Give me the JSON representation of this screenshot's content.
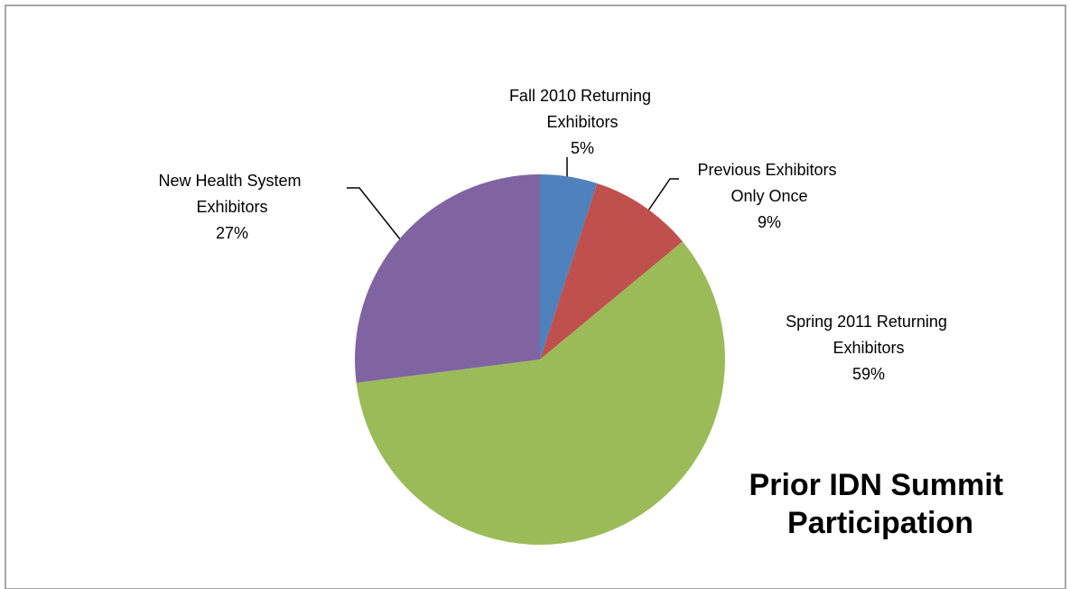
{
  "chart_data": {
    "type": "pie",
    "title": "Prior IDN Summit Participation",
    "categories": [
      "Fall 2010 Returning Exhibitors",
      "Previous Exhibitors Only Once",
      "Spring 2011 Returning Exhibitors",
      "New Health System Exhibitors"
    ],
    "values": [
      5,
      9,
      59,
      27
    ],
    "value_labels": [
      "5%",
      "9%",
      "59%",
      "27%"
    ],
    "colors": [
      "#4f81bd",
      "#c0504d",
      "#9bbb59",
      "#8064a2"
    ]
  }
}
